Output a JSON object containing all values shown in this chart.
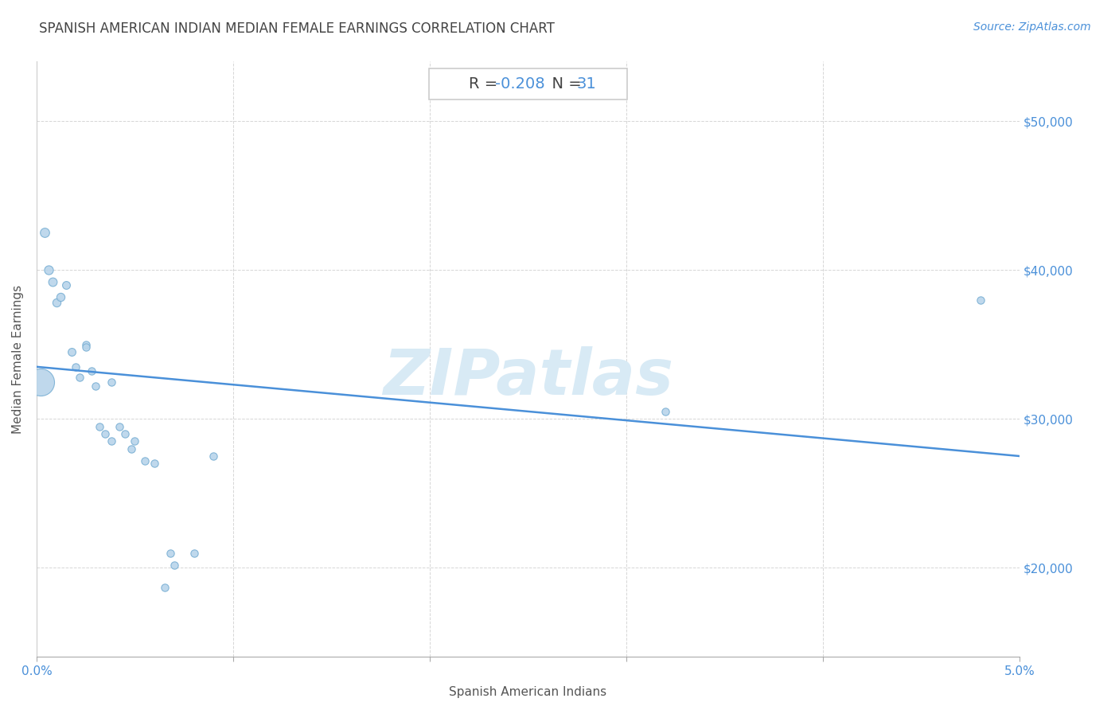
{
  "title": "SPANISH AMERICAN INDIAN MEDIAN FEMALE EARNINGS CORRELATION CHART",
  "source": "Source: ZipAtlas.com",
  "xlabel": "Spanish American Indians",
  "ylabel": "Median Female Earnings",
  "R": -0.208,
  "N": 31,
  "background_color": "#ffffff",
  "scatter_color": "#b8d4ea",
  "scatter_edge_color": "#7ab0d4",
  "line_color": "#4a90d9",
  "annotation_blue": "#4a90d9",
  "annotation_dark": "#444444",
  "watermark_color": "#d8eaf5",
  "xlim": [
    0.0,
    0.05
  ],
  "ylim": [
    14000,
    54000
  ],
  "xticks": [
    0.0,
    0.01,
    0.02,
    0.03,
    0.04,
    0.05
  ],
  "xticklabels": [
    "0.0%",
    "",
    "",
    "",
    "",
    "5.0%"
  ],
  "yticks": [
    20000,
    30000,
    40000,
    50000
  ],
  "yticklabels": [
    "$20,000",
    "$30,000",
    "$40,000",
    "$50,000"
  ],
  "points": [
    [
      0.0002,
      32500,
      600
    ],
    [
      0.0004,
      42500,
      70
    ],
    [
      0.0006,
      40000,
      65
    ],
    [
      0.0008,
      39200,
      60
    ],
    [
      0.001,
      37800,
      55
    ],
    [
      0.0012,
      38200,
      55
    ],
    [
      0.0015,
      39000,
      50
    ],
    [
      0.0018,
      34500,
      50
    ],
    [
      0.002,
      33500,
      45
    ],
    [
      0.0022,
      32800,
      45
    ],
    [
      0.0025,
      35000,
      45
    ],
    [
      0.0025,
      34800,
      45
    ],
    [
      0.0028,
      33200,
      45
    ],
    [
      0.003,
      32200,
      45
    ],
    [
      0.0032,
      29500,
      45
    ],
    [
      0.0035,
      29000,
      45
    ],
    [
      0.0038,
      32500,
      45
    ],
    [
      0.0038,
      28500,
      45
    ],
    [
      0.0042,
      29500,
      45
    ],
    [
      0.0045,
      29000,
      45
    ],
    [
      0.0048,
      28000,
      45
    ],
    [
      0.005,
      28500,
      45
    ],
    [
      0.0055,
      27200,
      45
    ],
    [
      0.006,
      27000,
      45
    ],
    [
      0.0065,
      18700,
      45
    ],
    [
      0.0068,
      21000,
      45
    ],
    [
      0.007,
      20200,
      45
    ],
    [
      0.008,
      21000,
      45
    ],
    [
      0.009,
      27500,
      45
    ],
    [
      0.032,
      30500,
      45
    ],
    [
      0.048,
      38000,
      45
    ]
  ],
  "line_x": [
    0.0,
    0.05
  ],
  "line_y": [
    33500,
    27500
  ],
  "title_fontsize": 12,
  "axis_label_fontsize": 11,
  "tick_fontsize": 11,
  "annotation_fontsize": 14,
  "source_fontsize": 10,
  "grid_color": "#cccccc",
  "grid_style": "--",
  "grid_alpha": 0.8
}
